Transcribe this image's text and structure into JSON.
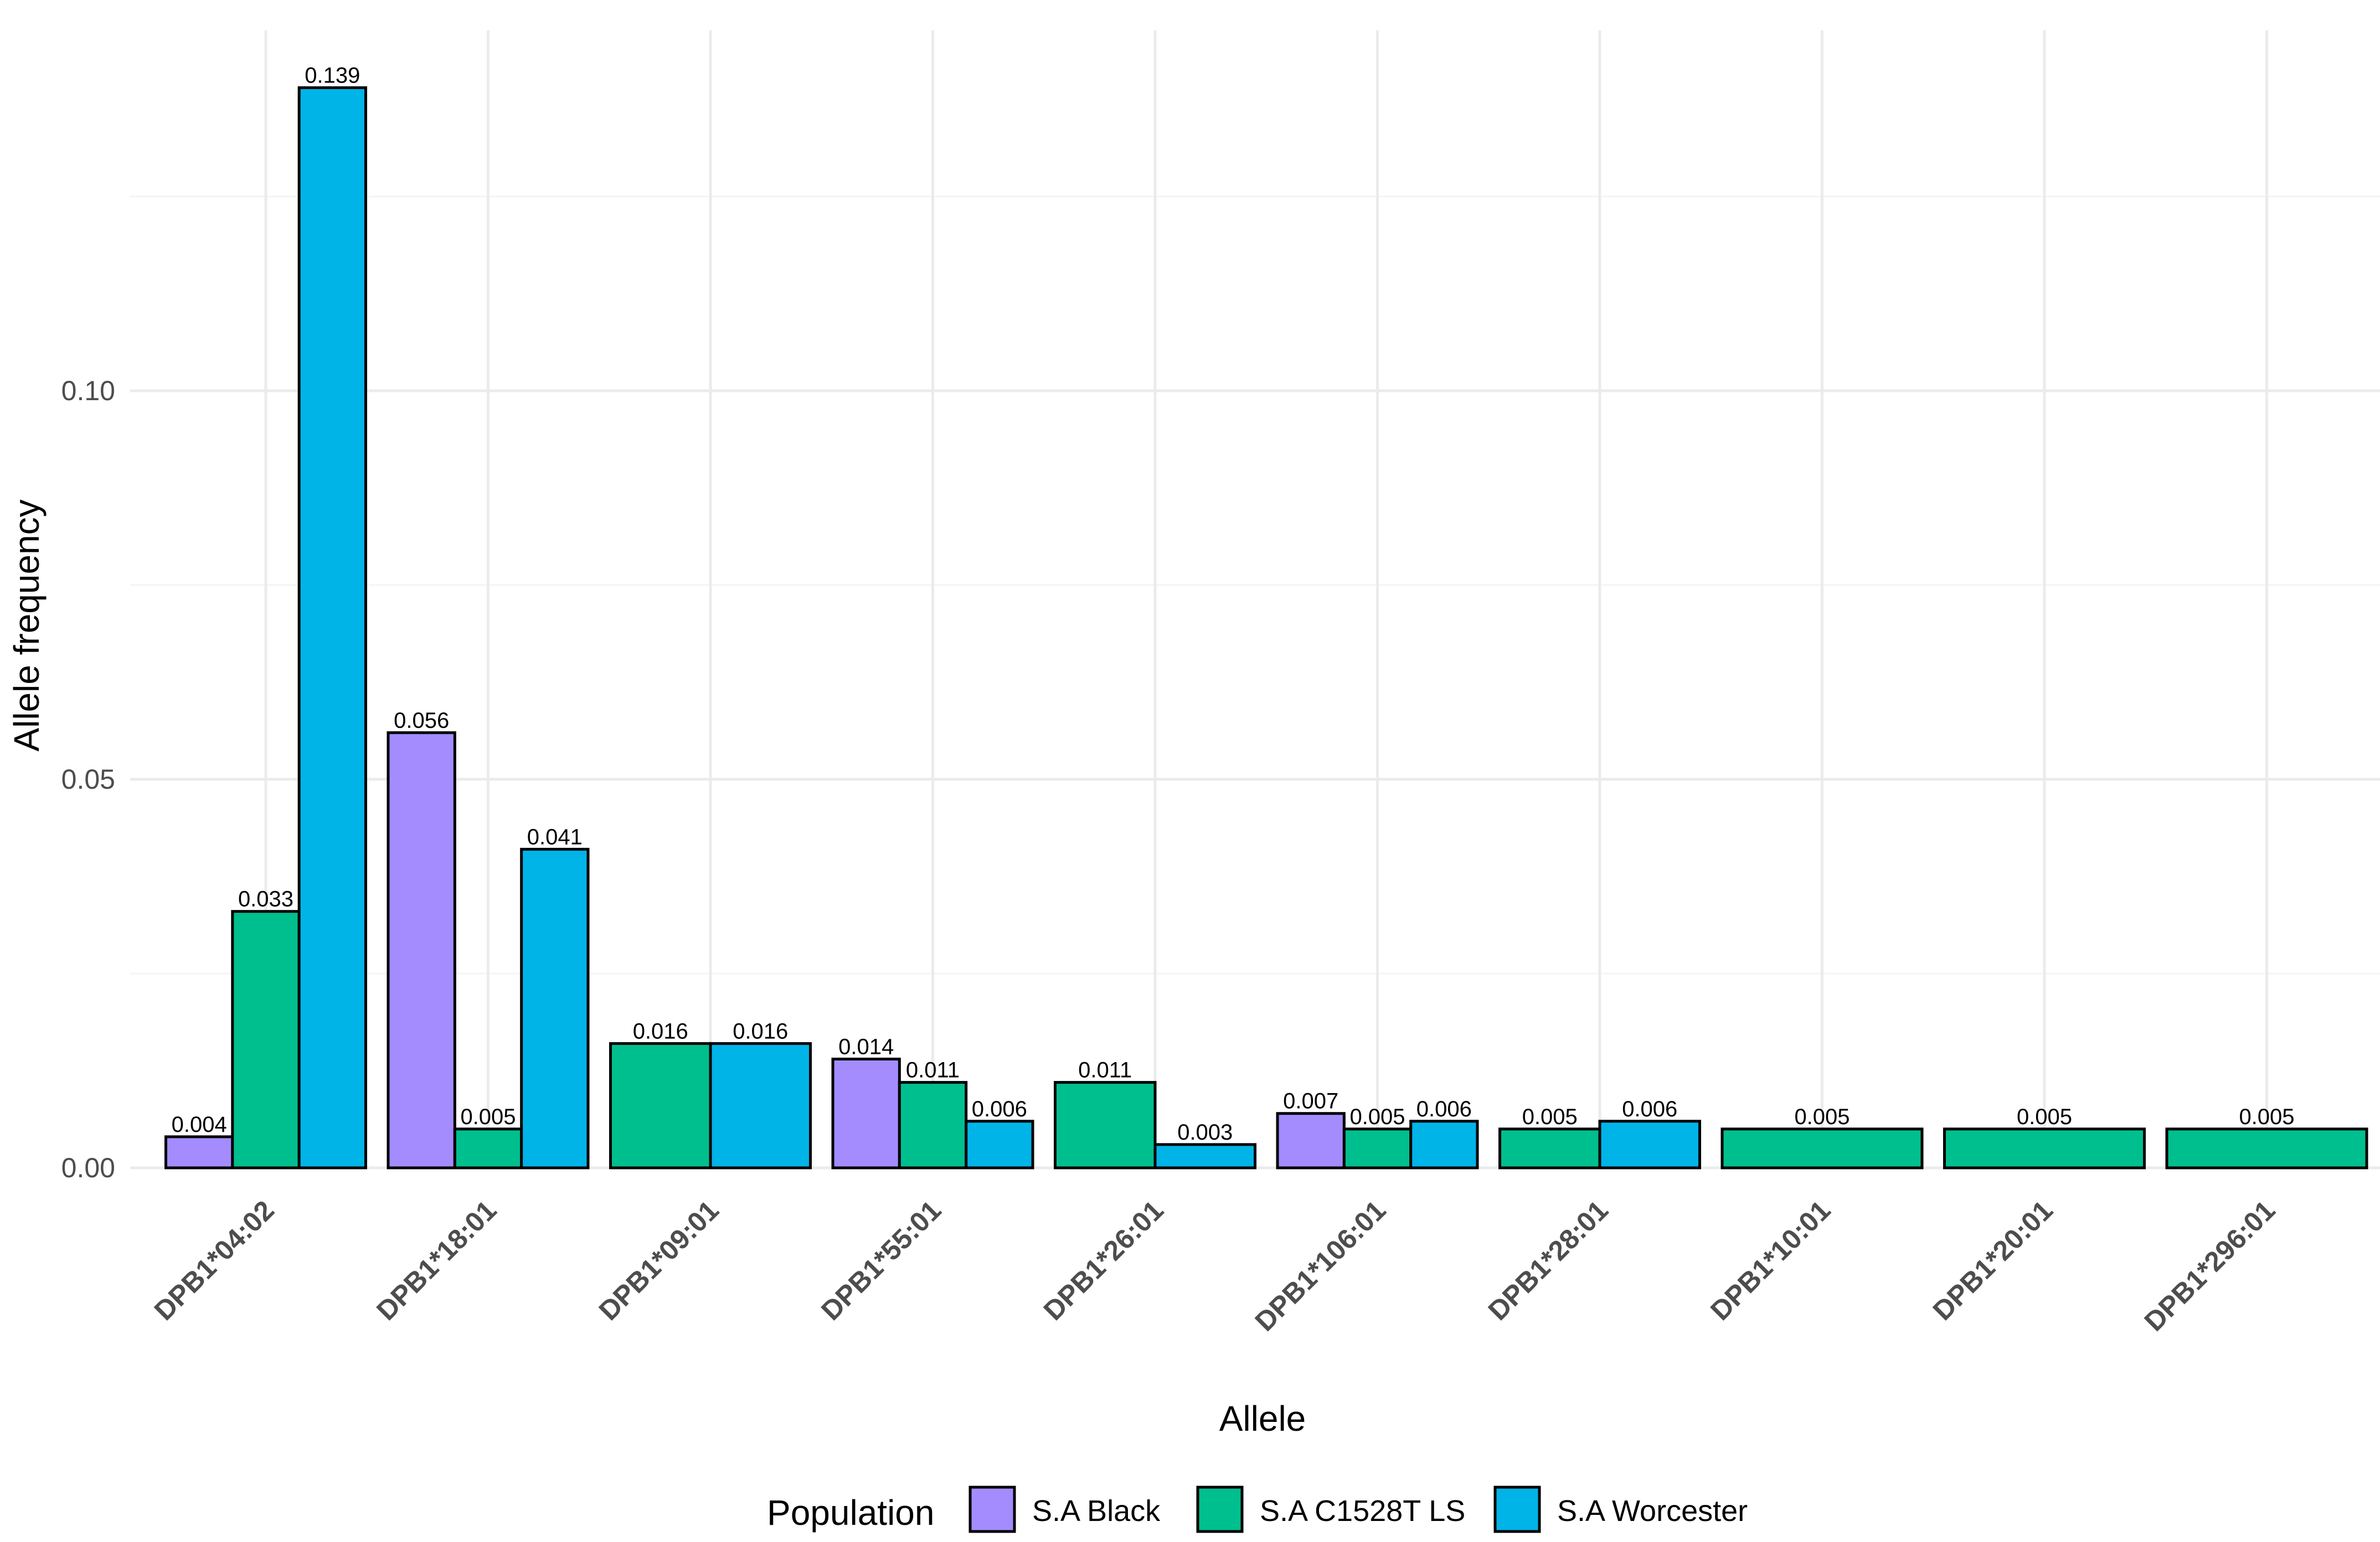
{
  "chart_data": {
    "type": "bar",
    "title": "",
    "xlabel": "Allele",
    "ylabel": "Allele frequency",
    "ylim": [
      0,
      0.14
    ],
    "yticks": [
      0.0,
      0.05,
      0.1
    ],
    "ytick_labels": [
      "0.00",
      "0.05",
      "0.10"
    ],
    "categories": [
      "DPB1*04:02",
      "DPB1*18:01",
      "DPB1*09:01",
      "DPB1*55:01",
      "DPB1*26:01",
      "DPB1*106:01",
      "DPB1*28:01",
      "DPB1*10:01",
      "DPB1*20:01",
      "DPB1*296:01"
    ],
    "series": [
      {
        "name": "S.A Black",
        "color": "#a48cff",
        "values": [
          0.004,
          0.056,
          null,
          0.014,
          null,
          0.007,
          null,
          null,
          null,
          null
        ],
        "labels": [
          "0.004",
          "0.056",
          null,
          "0.014",
          null,
          "0.007",
          null,
          null,
          null,
          null
        ]
      },
      {
        "name": "S.A C1528T LS",
        "color": "#00bf8e",
        "values": [
          0.033,
          0.005,
          0.016,
          0.011,
          0.011,
          0.005,
          0.005,
          0.005,
          0.005,
          0.005
        ],
        "labels": [
          "0.033",
          "0.005",
          "0.016",
          "0.011",
          "0.011",
          "0.005",
          "0.005",
          "0.005",
          "0.005",
          "0.005"
        ]
      },
      {
        "name": "S.A Worcester",
        "color": "#00b4e8",
        "values": [
          0.139,
          0.041,
          0.016,
          0.006,
          0.003,
          0.006,
          0.006,
          null,
          null,
          null
        ],
        "labels": [
          "0.139",
          "0.041",
          "0.016",
          "0.006",
          "0.003",
          "0.006",
          "0.006",
          null,
          null,
          null
        ]
      }
    ],
    "legend": {
      "title": "Population",
      "position": "bottom"
    },
    "grid": true
  }
}
